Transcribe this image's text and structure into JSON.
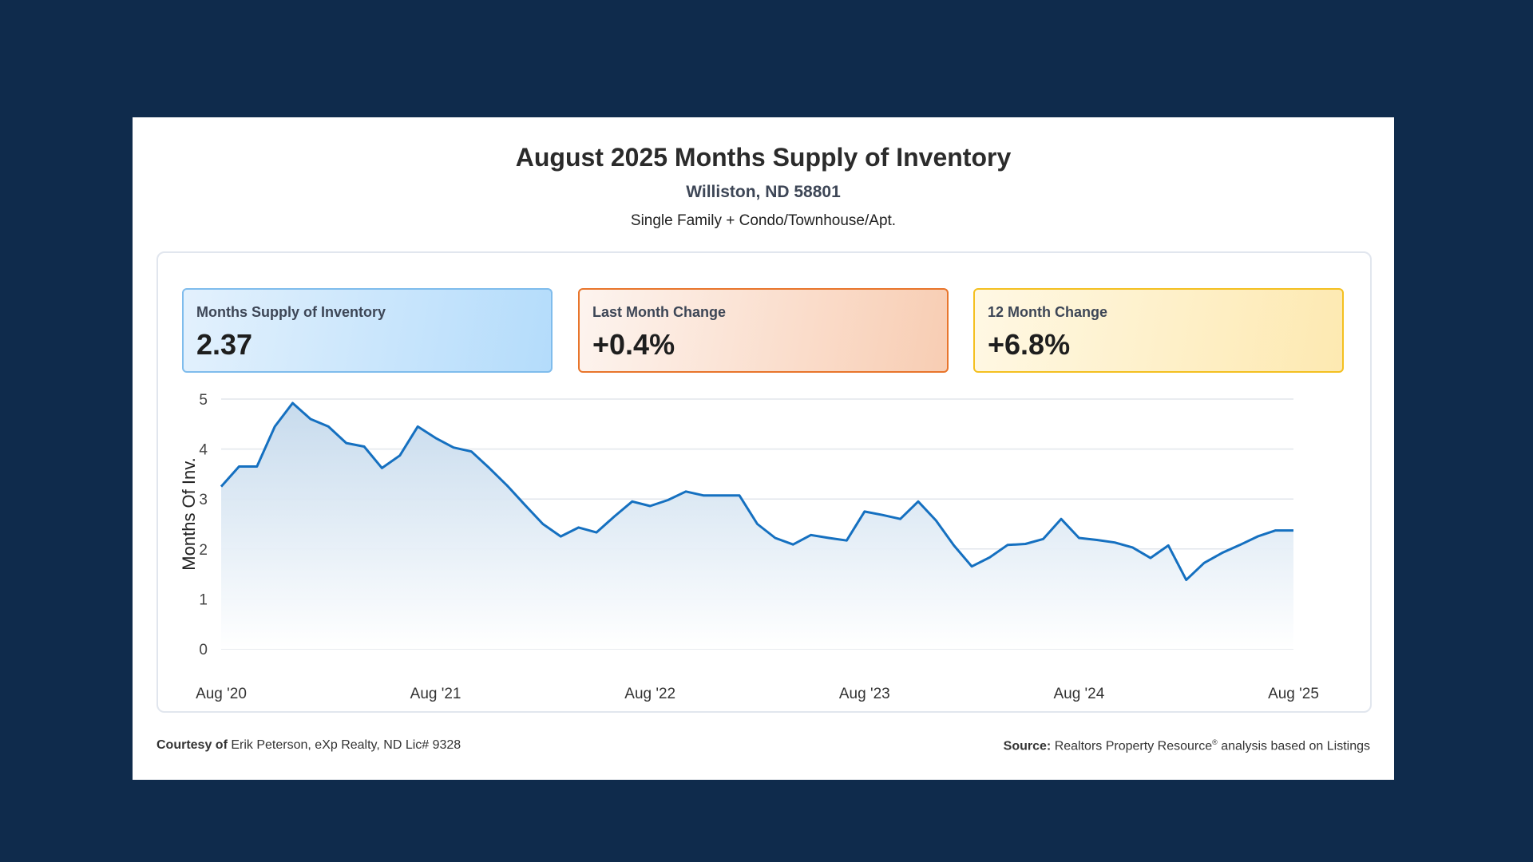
{
  "header": {
    "title": "August 2025 Months Supply of Inventory",
    "location": "Williston, ND 58801",
    "property_types": "Single Family + Condo/Townhouse/Apt."
  },
  "stats": [
    {
      "label": "Months Supply of Inventory",
      "value": "2.37"
    },
    {
      "label": "Last Month Change",
      "value": "+0.4%"
    },
    {
      "label": "12 Month Change",
      "value": "+6.8%"
    }
  ],
  "colors": {
    "line": "#1570c0",
    "grid": "#e2e6ec",
    "page_bg": "#0f2b4c"
  },
  "chart_data": {
    "type": "area",
    "ylabel": "Months Of Inv.",
    "xlabel": "",
    "ylim": [
      0,
      5
    ],
    "yticks": [
      0,
      1,
      2,
      3,
      4,
      5
    ],
    "grid": true,
    "xtick_labels": [
      "Aug '20",
      "Aug '21",
      "Aug '22",
      "Aug '23",
      "Aug '24",
      "Aug '25"
    ],
    "series": [
      {
        "name": "Months Supply of Inventory",
        "start": "Aug 2020",
        "values": [
          3.25,
          3.65,
          3.65,
          4.45,
          4.92,
          4.6,
          4.45,
          4.12,
          4.05,
          3.62,
          3.87,
          4.45,
          4.22,
          4.03,
          3.95,
          3.62,
          3.27,
          2.88,
          2.5,
          2.25,
          2.43,
          2.33,
          2.65,
          2.95,
          2.86,
          2.98,
          3.15,
          3.07,
          3.07,
          3.07,
          2.5,
          2.22,
          2.09,
          2.28,
          2.22,
          2.17,
          2.75,
          2.68,
          2.6,
          2.95,
          2.57,
          2.07,
          1.65,
          1.83,
          2.08,
          2.1,
          2.2,
          2.6,
          2.22,
          2.18,
          2.13,
          2.03,
          1.82,
          2.07,
          1.38,
          1.72,
          1.92,
          2.08,
          2.25,
          2.37,
          2.37
        ]
      }
    ]
  },
  "footer": {
    "courtesy_label": "Courtesy of",
    "courtesy_text": "Erik Peterson, eXp Realty, ND Lic# 9328",
    "source_label": "Source:",
    "source_text": "Realtors Property Resource",
    "source_reg": "®",
    "source_suffix": " analysis based on Listings"
  }
}
